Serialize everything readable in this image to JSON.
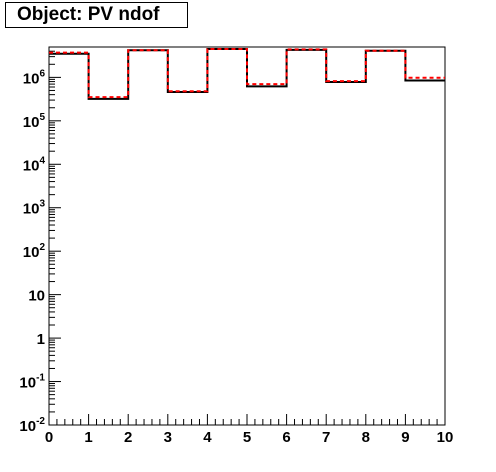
{
  "title": "Object: PV ndof",
  "chart_data": {
    "type": "histogram",
    "title": "Object: PV ndof",
    "xlabel": "",
    "ylabel": "",
    "xlim": [
      0,
      10
    ],
    "ylim": [
      0.01,
      5000000
    ],
    "y_scale": "log",
    "grid": false,
    "legend": "none",
    "bin_edges": [
      0,
      1,
      2,
      3,
      4,
      5,
      6,
      7,
      8,
      9,
      10
    ],
    "series": [
      {
        "color": "#000000",
        "line_style": "solid",
        "values": [
          3500000,
          320000,
          4200000,
          460000,
          4500000,
          620000,
          4300000,
          780000,
          4100000,
          850000
        ]
      },
      {
        "color": "#ff0000",
        "line_style": "dashed",
        "values": [
          3700000,
          350000,
          4200000,
          480000,
          4500000,
          700000,
          4400000,
          820000,
          4100000,
          980000
        ]
      }
    ],
    "x_ticks": [
      "0",
      "1",
      "2",
      "3",
      "4",
      "5",
      "6",
      "7",
      "8",
      "9",
      "10"
    ],
    "y_ticks": [
      {
        "value": 0.01,
        "base": "10",
        "exp": "-2"
      },
      {
        "value": 0.1,
        "base": "10",
        "exp": "-1"
      },
      {
        "value": 1,
        "base": "1",
        "exp": ""
      },
      {
        "value": 10,
        "base": "10",
        "exp": ""
      },
      {
        "value": 100,
        "base": "10",
        "exp": "2"
      },
      {
        "value": 1000,
        "base": "10",
        "exp": "3"
      },
      {
        "value": 10000,
        "base": "10",
        "exp": "4"
      },
      {
        "value": 100000,
        "base": "10",
        "exp": "5"
      },
      {
        "value": 1000000,
        "base": "10",
        "exp": "6"
      }
    ]
  }
}
